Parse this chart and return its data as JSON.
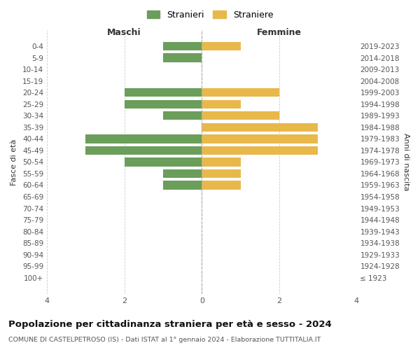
{
  "age_groups": [
    "100+",
    "95-99",
    "90-94",
    "85-89",
    "80-84",
    "75-79",
    "70-74",
    "65-69",
    "60-64",
    "55-59",
    "50-54",
    "45-49",
    "40-44",
    "35-39",
    "30-34",
    "25-29",
    "20-24",
    "15-19",
    "10-14",
    "5-9",
    "0-4"
  ],
  "birth_years": [
    "≤ 1923",
    "1924-1928",
    "1929-1933",
    "1934-1938",
    "1939-1943",
    "1944-1948",
    "1949-1953",
    "1954-1958",
    "1959-1963",
    "1964-1968",
    "1969-1973",
    "1974-1978",
    "1979-1983",
    "1984-1988",
    "1989-1993",
    "1994-1998",
    "1999-2003",
    "2004-2008",
    "2009-2013",
    "2014-2018",
    "2019-2023"
  ],
  "males": [
    0,
    0,
    0,
    0,
    0,
    0,
    0,
    0,
    1,
    1,
    2,
    3,
    3,
    0,
    1,
    2,
    2,
    0,
    0,
    1,
    1
  ],
  "females": [
    0,
    0,
    0,
    0,
    0,
    0,
    0,
    0,
    1,
    1,
    1,
    3,
    3,
    3,
    2,
    1,
    2,
    0,
    0,
    0,
    1
  ],
  "male_color": "#6a9e5a",
  "female_color": "#e8b84b",
  "title": "Popolazione per cittadinanza straniera per età e sesso - 2024",
  "subtitle": "COMUNE DI CASTELPETROSO (IS) - Dati ISTAT al 1° gennaio 2024 - Elaborazione TUTTITALIA.IT",
  "xlabel_left": "Maschi",
  "xlabel_right": "Femmine",
  "ylabel_left": "Fasce di età",
  "ylabel_right": "Anni di nascita",
  "legend_male": "Stranieri",
  "legend_female": "Straniere",
  "xlim": 4,
  "background_color": "#ffffff",
  "grid_color": "#cccccc"
}
